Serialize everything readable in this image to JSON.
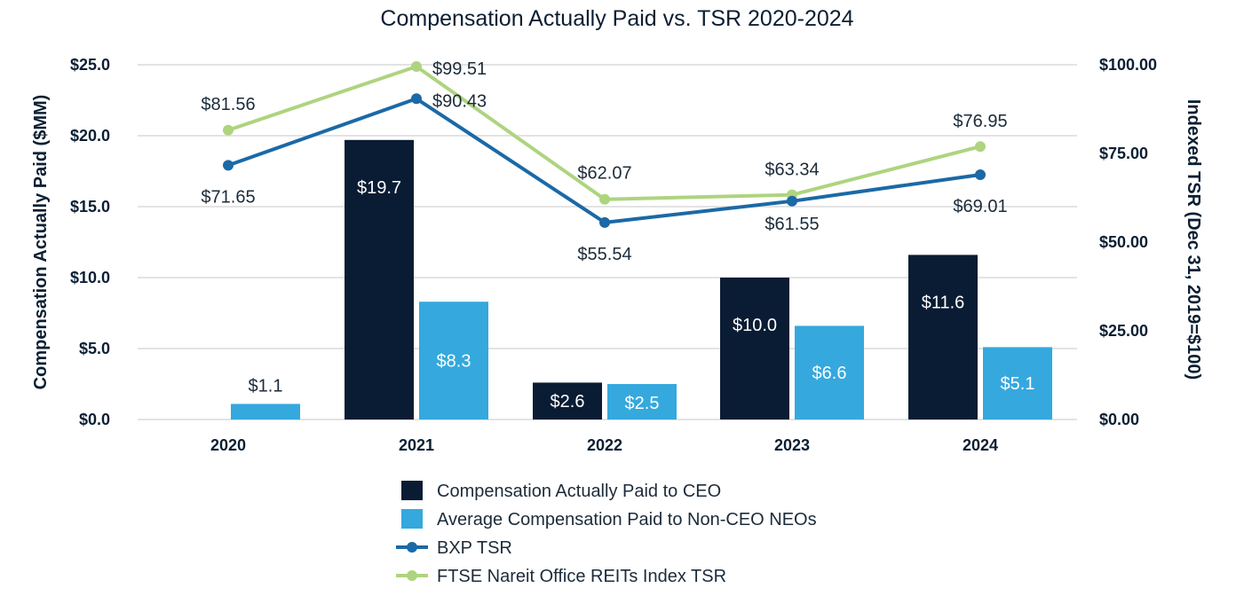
{
  "chart_data": {
    "type": "bar",
    "title": "Compensation Actually Paid vs. TSR 2020-2024",
    "categories": [
      "2020",
      "2021",
      "2022",
      "2023",
      "2024"
    ],
    "ylabel_left": "Compensation Actually Paid ($MM)",
    "ylabel_right": "Indexed TSR (Dec 31, 2019=$100)",
    "ylim_left": [
      0,
      25
    ],
    "ylim_right": [
      0,
      100
    ],
    "yticks_left": [
      "$0.0",
      "$5.0",
      "$10.0",
      "$15.0",
      "$20.0",
      "$25.0"
    ],
    "yticks_right": [
      "$0.00",
      "$25.00",
      "$50.00",
      "$75.00",
      "$100.00"
    ],
    "bar_series": [
      {
        "name": "Compensation Actually Paid to CEO",
        "color": "#0a1c33",
        "values": [
          null,
          19.7,
          2.6,
          10.0,
          11.6
        ],
        "labels": [
          "",
          "$19.7",
          "$2.6",
          "$10.0",
          "$11.6"
        ]
      },
      {
        "name": "Average Compensation Paid to Non-CEO NEOs",
        "color": "#35a8de",
        "values": [
          1.1,
          8.3,
          2.5,
          6.6,
          5.1
        ],
        "labels": [
          "$1.1",
          "$8.3",
          "$2.5",
          "$6.6",
          "$5.1"
        ]
      }
    ],
    "line_series": [
      {
        "name": "BXP TSR",
        "color": "#1b69a6",
        "values": [
          71.65,
          90.43,
          55.54,
          61.55,
          69.01
        ],
        "labels": [
          "$71.65",
          "$90.43",
          "$55.54",
          "$61.55",
          "$69.01"
        ]
      },
      {
        "name": "FTSE Nareit Office REITs Index TSR",
        "color": "#aed47f",
        "values": [
          81.56,
          99.51,
          62.07,
          63.34,
          76.95
        ],
        "labels": [
          "$81.56",
          "$99.51",
          "$62.07",
          "$63.34",
          "$76.95"
        ]
      }
    ],
    "legend": [
      {
        "name": "Compensation Actually Paid to CEO",
        "kind": "bar",
        "color": "#0a1c33"
      },
      {
        "name": "Average Compensation Paid to Non-CEO NEOs",
        "kind": "bar",
        "color": "#35a8de"
      },
      {
        "name": "BXP TSR",
        "kind": "line",
        "color": "#1b69a6"
      },
      {
        "name": "FTSE Nareit Office REITs Index TSR",
        "kind": "line",
        "color": "#aed47f"
      }
    ],
    "legend_position": "bottom-center",
    "grid": true
  }
}
